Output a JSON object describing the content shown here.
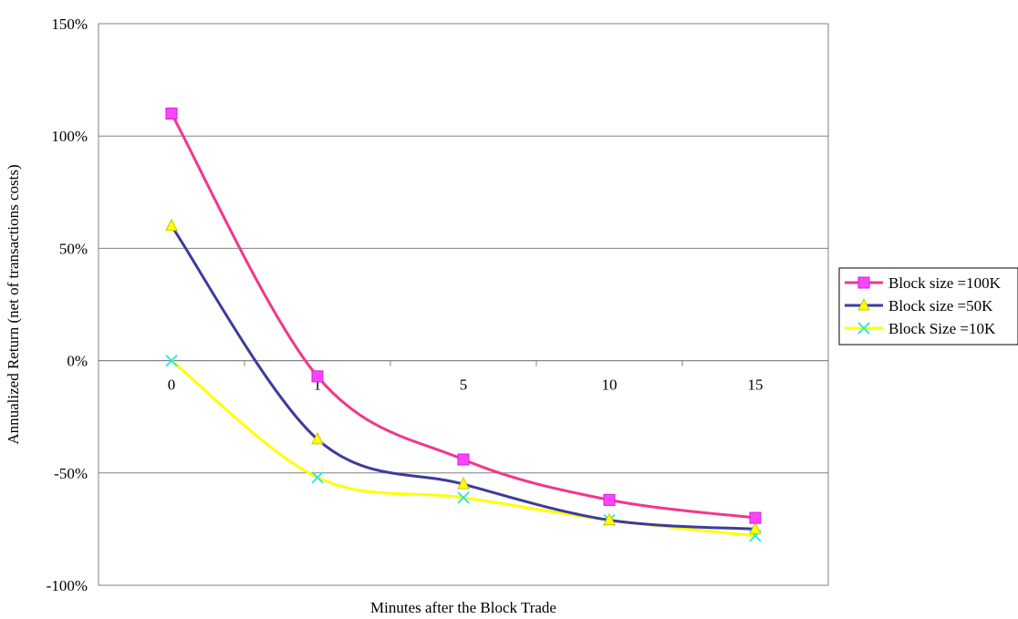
{
  "chart_data": {
    "type": "line",
    "title": "",
    "xlabel": "Minutes after the Block Trade",
    "ylabel": "Annualized Return (net of transactions costs)",
    "categories": [
      "0",
      "1",
      "5",
      "10",
      "15"
    ],
    "ylim": [
      -100,
      150
    ],
    "yticks": [
      150,
      100,
      50,
      0,
      -50,
      -100
    ],
    "ytick_labels": [
      "150%",
      "100%",
      "50%",
      "0%",
      "-50%",
      "-100%"
    ],
    "grid": "horizontal",
    "legend_position": "right",
    "series": [
      {
        "name": "Block size =100K",
        "values": [
          110,
          -7,
          -44,
          -62,
          -70
        ],
        "line_color": "#f0388c",
        "marker": "square",
        "marker_color": "#ff44ff"
      },
      {
        "name": "Block size =50K",
        "values": [
          60,
          -35,
          -55,
          -71,
          -75
        ],
        "line_color": "#3c3c9c",
        "marker": "triangle",
        "marker_color": "#ffff00"
      },
      {
        "name": "Block Size =10K",
        "values": [
          0,
          -52,
          -61,
          -71,
          -78
        ],
        "line_color": "#ffff00",
        "marker": "x",
        "marker_color": "#22e6e6"
      }
    ]
  }
}
